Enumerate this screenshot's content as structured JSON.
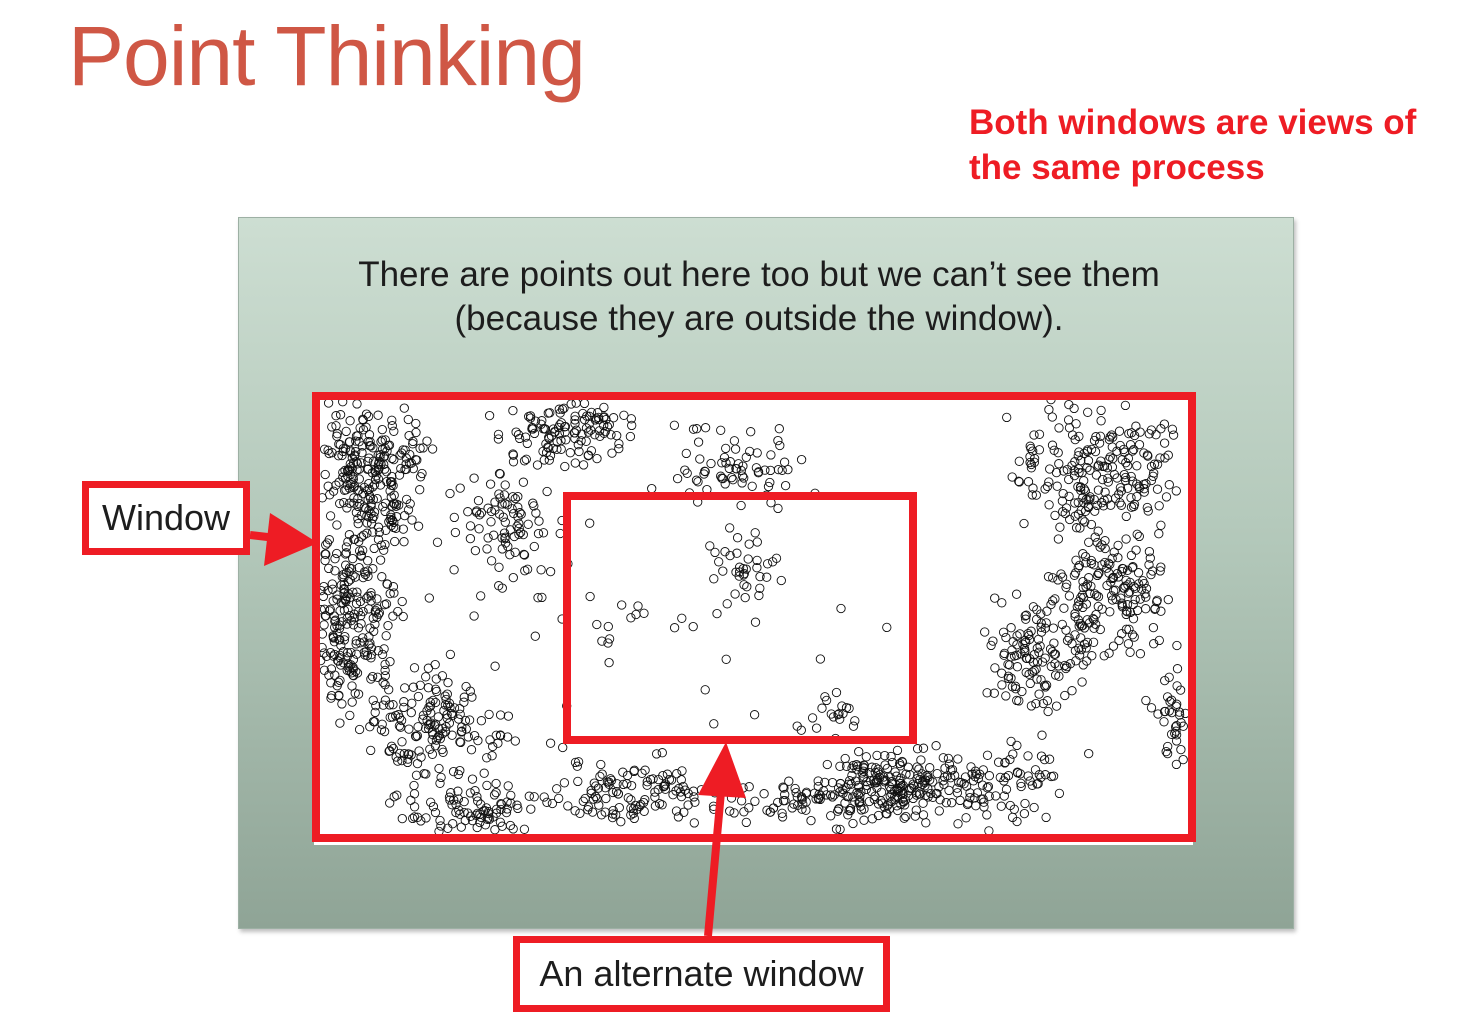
{
  "slide": {
    "title": "Point Thinking",
    "note": "Both windows are views of the same process"
  },
  "panel": {
    "caption_line1": "There are points out here too but we can’t see them",
    "caption_line2": "(because they are outside the window)."
  },
  "labels": {
    "window": "Window",
    "alternate_window": "An alternate window"
  },
  "colors": {
    "title": "#cf5745",
    "highlight_red": "#ee1c24",
    "panel_top": "#cdded2",
    "panel_bottom": "#8fa496"
  },
  "chart_data": {
    "type": "scatter",
    "marker": "open-circle",
    "title": "",
    "xlabel": "",
    "ylabel": "",
    "grid": false
  }
}
